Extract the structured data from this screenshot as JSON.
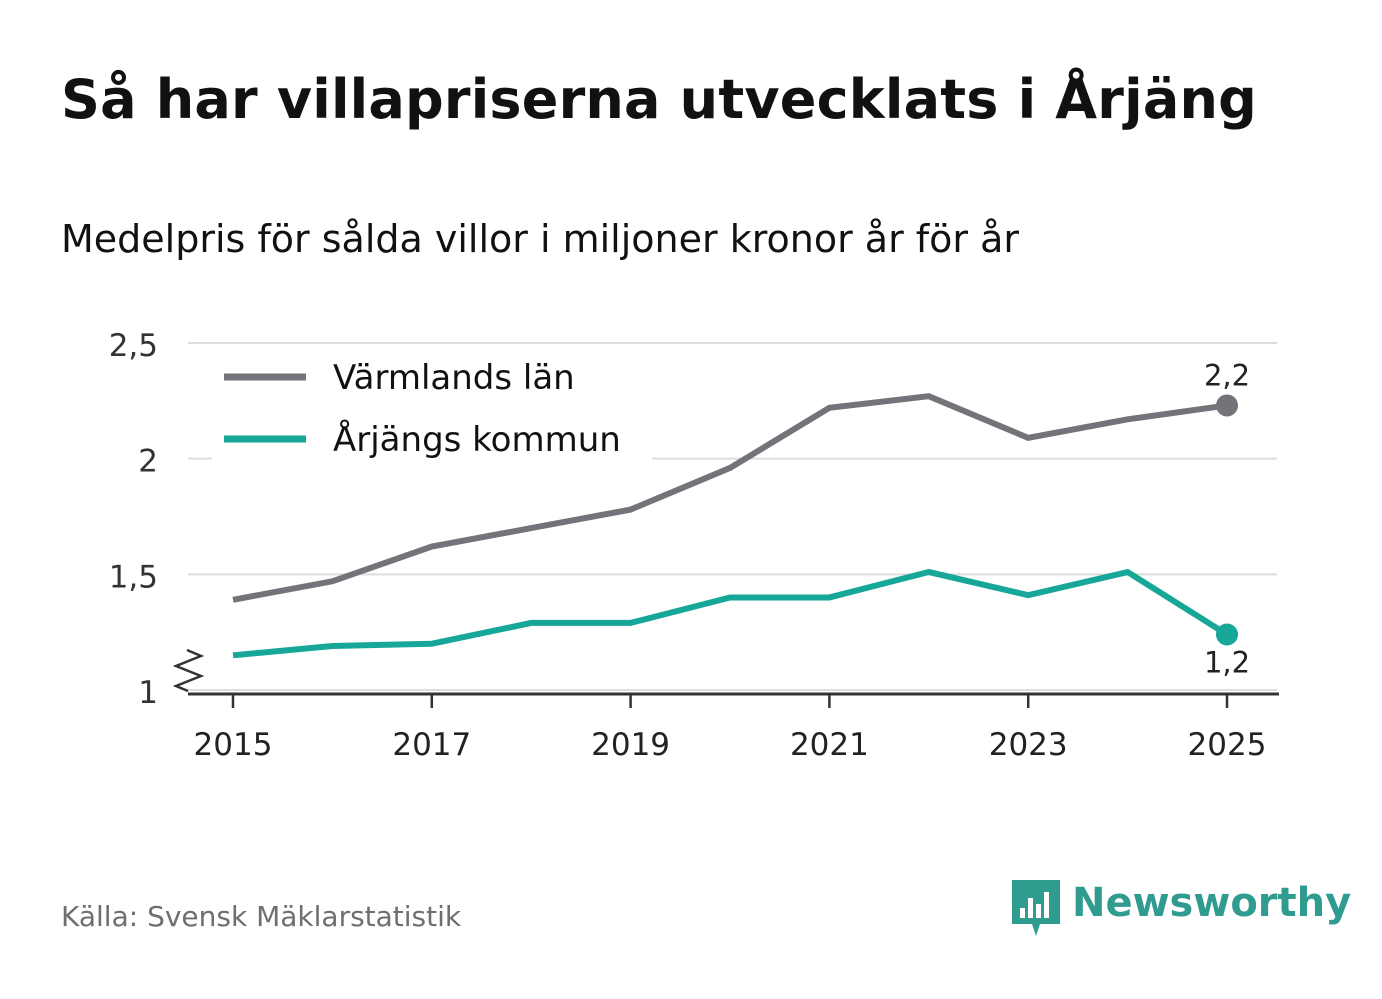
{
  "title": "Så har villapriserna utvecklats i Årjäng",
  "subtitle": "Medelpris för sålda villor i miljoner kronor år för år",
  "source": "Källa: Svensk Mäklarstatistik",
  "brand": {
    "name": "Newsworthy",
    "color": "#2f9c8f",
    "icon": "newsworthy-logo-icon"
  },
  "chart_data": {
    "type": "line",
    "title": "Så har villapriserna utvecklats i Årjäng",
    "subtitle": "Medelpris för sålda villor i miljoner kronor år för år",
    "xlabel": "",
    "ylabel": "",
    "x": [
      2015,
      2016,
      2017,
      2018,
      2019,
      2020,
      2021,
      2022,
      2023,
      2024,
      2025
    ],
    "x_ticks": [
      2015,
      2017,
      2019,
      2021,
      2023,
      2025
    ],
    "x_tick_labels": [
      "2015",
      "2017",
      "2019",
      "2021",
      "2023",
      "2025"
    ],
    "y_ticks": [
      1,
      1.5,
      2,
      2.5
    ],
    "y_tick_labels": [
      "1",
      "1,5",
      "2",
      "2,5"
    ],
    "ylim": [
      1,
      2.5
    ],
    "xlim": [
      2014.5,
      2025.5
    ],
    "grid": true,
    "y_axis_break": true,
    "legend_position": "top-left",
    "series": [
      {
        "name": "Värmlands län",
        "color": "#747379",
        "values": [
          1.39,
          1.47,
          1.62,
          1.7,
          1.78,
          1.96,
          2.22,
          2.27,
          2.09,
          2.17,
          2.23
        ],
        "end_label": "2,2",
        "end_label_position": "above"
      },
      {
        "name": "Årjängs kommun",
        "color": "#16a799",
        "values": [
          1.15,
          1.19,
          1.2,
          1.29,
          1.29,
          1.4,
          1.4,
          1.51,
          1.41,
          1.51,
          1.24
        ],
        "end_label": "1,2",
        "end_label_position": "below"
      }
    ]
  }
}
